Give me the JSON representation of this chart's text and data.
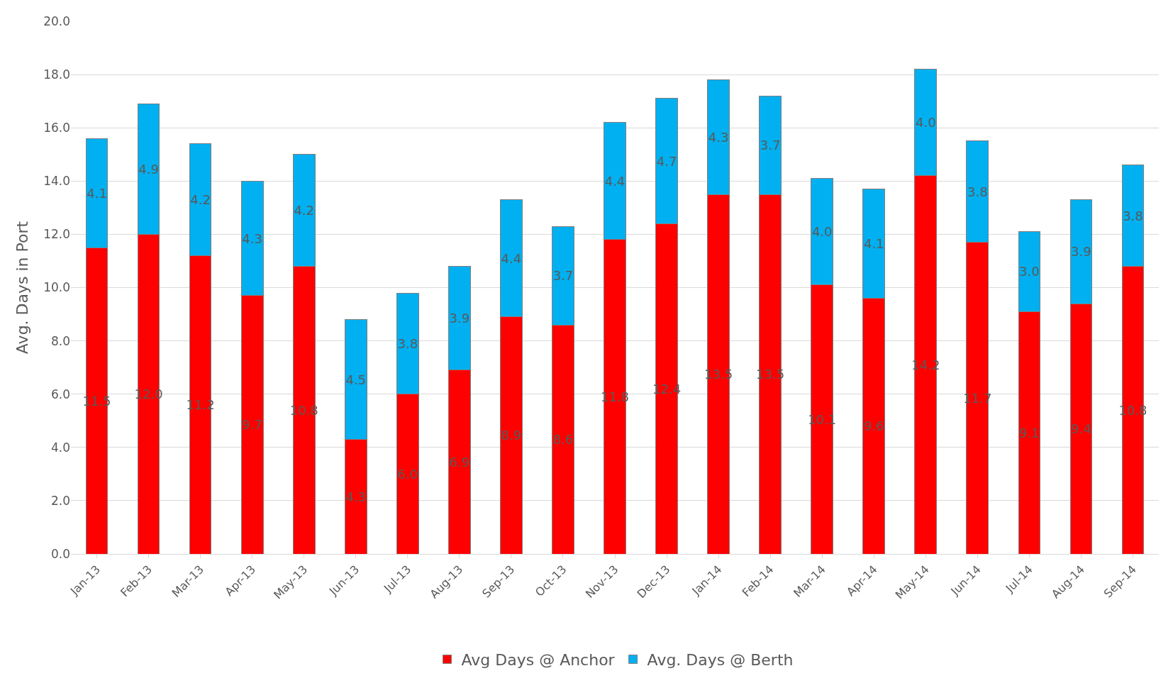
{
  "chart_data": {
    "type": "bar",
    "stacked": true,
    "ylabel": "Avg. Days in Port",
    "categories": [
      "Jan-13",
      "Feb-13",
      "Mar-13",
      "Apr-13",
      "May-13",
      "Jun-13",
      "Jul-13",
      "Aug-13",
      "Sep-13",
      "Oct-13",
      "Nov-13",
      "Dec-13",
      "Jan-14",
      "Feb-14",
      "Mar-14",
      "Apr-14",
      "May-14",
      "Jun-14",
      "Jul-14",
      "Aug-14",
      "Sep-14"
    ],
    "series": [
      {
        "name": "Avg Days @ Anchor",
        "color": "#ff0000",
        "values": [
          11.5,
          12.0,
          11.2,
          9.7,
          10.8,
          4.3,
          6.0,
          6.9,
          8.9,
          8.6,
          11.8,
          12.4,
          13.5,
          13.5,
          10.1,
          9.6,
          14.2,
          11.7,
          9.1,
          9.4,
          10.8
        ],
        "value_labels": [
          "11.5",
          "12.0",
          "11.2",
          "9.7",
          "10.8",
          "4.3",
          "6.0",
          "6.9",
          "8.9",
          "8.6",
          "11.8",
          "12.4",
          "13.5",
          "13.5",
          "10.1",
          "9.6",
          "14.2",
          "11.7",
          "9.1",
          "9.4",
          "10.8"
        ]
      },
      {
        "name": "Avg. Days @ Berth",
        "color": "#00b0f0",
        "values": [
          4.1,
          4.9,
          4.2,
          4.3,
          4.2,
          4.5,
          3.8,
          3.9,
          4.4,
          3.7,
          4.4,
          4.7,
          4.3,
          3.7,
          4.0,
          4.1,
          4.0,
          3.8,
          3.0,
          3.9,
          3.8
        ],
        "value_labels": [
          "4.1",
          "4.9",
          "4.2",
          "4.3",
          "4.2",
          "4.5",
          "3.8",
          "3.9",
          "4.4",
          "3.7",
          "4.4",
          "4.7",
          "4.3",
          "3.7",
          "4.0",
          "4.1",
          "4.0",
          "3.8",
          "3.0",
          "3.9",
          "3.8"
        ]
      }
    ],
    "ylim": [
      0,
      20
    ],
    "yticks": [
      {
        "value": 0,
        "label": "0.0"
      },
      {
        "value": 2,
        "label": "2.0"
      },
      {
        "value": 4,
        "label": "4.0"
      },
      {
        "value": 6,
        "label": "6.0"
      },
      {
        "value": 8,
        "label": "8.0"
      },
      {
        "value": 10,
        "label": "10.0"
      },
      {
        "value": 12,
        "label": "12.0"
      },
      {
        "value": 14,
        "label": "14.0"
      },
      {
        "value": 16,
        "label": "16.0"
      },
      {
        "value": 18,
        "label": "18.0"
      },
      {
        "value": 20,
        "label": "20.0"
      }
    ],
    "grid": "y",
    "legend": "bottom"
  }
}
